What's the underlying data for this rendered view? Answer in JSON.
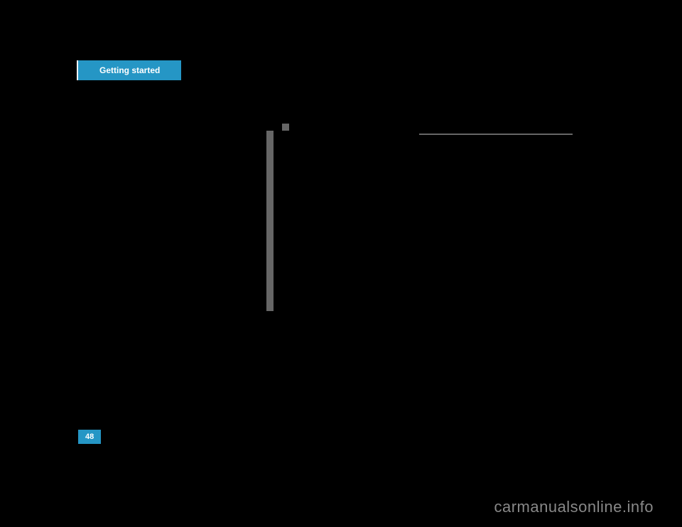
{
  "header": {
    "badge_text": "Getting started"
  },
  "elements": {
    "small_square_color": "#666666",
    "vertical_bar_color": "#666666",
    "horizontal_line_color": "#666666"
  },
  "page": {
    "number": "48",
    "badge_bg_color": "#2596c5",
    "badge_text_color": "#ffffff"
  },
  "watermark": {
    "text": "carmanualsonline.info",
    "color": "#888888"
  },
  "colors": {
    "background": "#000000",
    "accent": "#2596c5"
  }
}
